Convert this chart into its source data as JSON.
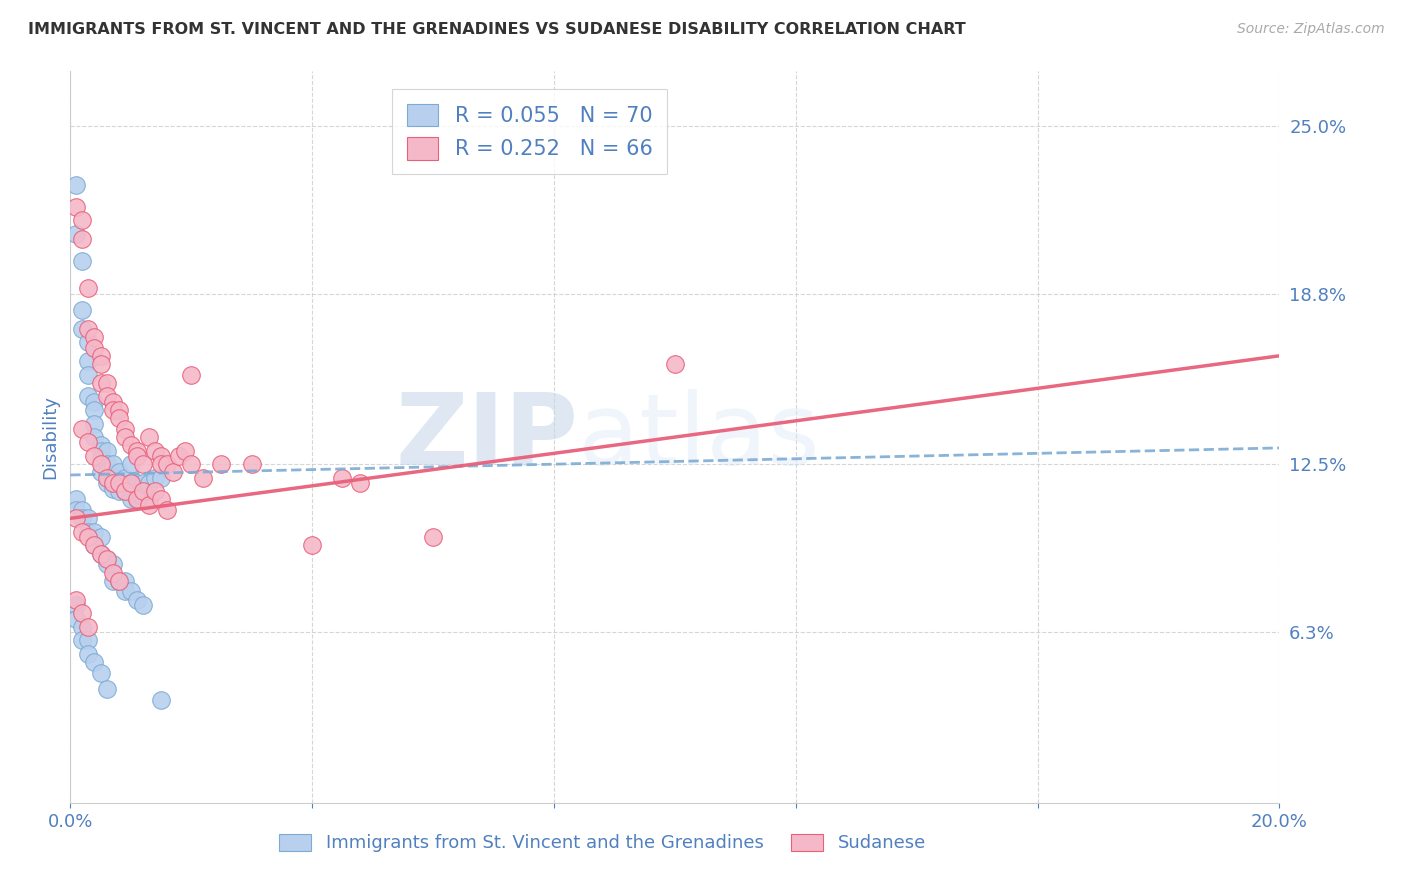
{
  "title": "IMMIGRANTS FROM ST. VINCENT AND THE GRENADINES VS SUDANESE DISABILITY CORRELATION CHART",
  "source": "Source: ZipAtlas.com",
  "ylabel": "Disability",
  "xlim": [
    0.0,
    0.2
  ],
  "ylim": [
    0.0,
    0.27
  ],
  "yticks": [
    0.063,
    0.125,
    0.188,
    0.25
  ],
  "ytick_labels": [
    "6.3%",
    "12.5%",
    "18.8%",
    "25.0%"
  ],
  "xticks": [
    0.0,
    0.04,
    0.08,
    0.12,
    0.16,
    0.2
  ],
  "xtick_labels": [
    "0.0%",
    "",
    "",
    "",
    "",
    "20.0%"
  ],
  "blue_color": "#b8d0ed",
  "pink_color": "#f5b8c8",
  "blue_edge_color": "#7dabd4",
  "pink_edge_color": "#e8607a",
  "blue_line_color": "#7dabd4",
  "pink_line_color": "#e8607a",
  "label_color": "#5080c0",
  "R_blue": 0.055,
  "N_blue": 70,
  "R_pink": 0.252,
  "N_pink": 66,
  "blue_line_x": [
    0.0,
    0.2
  ],
  "blue_line_y": [
    0.121,
    0.131
  ],
  "pink_line_x": [
    0.0,
    0.2
  ],
  "pink_line_y": [
    0.105,
    0.165
  ],
  "watermark_zip": "ZIP",
  "watermark_atlas": "atlas",
  "background_color": "#ffffff",
  "grid_color": "#cccccc",
  "blue_scatter_x": [
    0.001,
    0.001,
    0.002,
    0.002,
    0.002,
    0.003,
    0.003,
    0.003,
    0.003,
    0.004,
    0.004,
    0.004,
    0.004,
    0.005,
    0.005,
    0.005,
    0.005,
    0.006,
    0.006,
    0.006,
    0.006,
    0.007,
    0.007,
    0.007,
    0.008,
    0.008,
    0.008,
    0.009,
    0.009,
    0.01,
    0.01,
    0.01,
    0.011,
    0.011,
    0.012,
    0.012,
    0.013,
    0.013,
    0.014,
    0.015,
    0.001,
    0.001,
    0.002,
    0.002,
    0.003,
    0.003,
    0.004,
    0.004,
    0.005,
    0.005,
    0.006,
    0.006,
    0.007,
    0.007,
    0.008,
    0.009,
    0.009,
    0.01,
    0.011,
    0.012,
    0.001,
    0.001,
    0.002,
    0.002,
    0.003,
    0.003,
    0.004,
    0.005,
    0.006,
    0.015
  ],
  "blue_scatter_y": [
    0.228,
    0.21,
    0.2,
    0.182,
    0.175,
    0.17,
    0.163,
    0.158,
    0.15,
    0.148,
    0.145,
    0.14,
    0.135,
    0.132,
    0.13,
    0.127,
    0.122,
    0.13,
    0.125,
    0.122,
    0.118,
    0.125,
    0.12,
    0.116,
    0.122,
    0.118,
    0.115,
    0.12,
    0.115,
    0.125,
    0.118,
    0.112,
    0.118,
    0.112,
    0.118,
    0.113,
    0.118,
    0.112,
    0.12,
    0.12,
    0.112,
    0.108,
    0.108,
    0.105,
    0.105,
    0.1,
    0.1,
    0.095,
    0.098,
    0.092,
    0.09,
    0.088,
    0.088,
    0.082,
    0.082,
    0.082,
    0.078,
    0.078,
    0.075,
    0.073,
    0.073,
    0.068,
    0.065,
    0.06,
    0.06,
    0.055,
    0.052,
    0.048,
    0.042,
    0.038
  ],
  "pink_scatter_x": [
    0.001,
    0.002,
    0.002,
    0.003,
    0.003,
    0.004,
    0.004,
    0.005,
    0.005,
    0.005,
    0.006,
    0.006,
    0.007,
    0.007,
    0.008,
    0.008,
    0.009,
    0.009,
    0.01,
    0.011,
    0.011,
    0.012,
    0.013,
    0.014,
    0.015,
    0.015,
    0.016,
    0.017,
    0.018,
    0.019,
    0.02,
    0.02,
    0.022,
    0.025,
    0.002,
    0.003,
    0.004,
    0.005,
    0.006,
    0.007,
    0.008,
    0.009,
    0.01,
    0.011,
    0.012,
    0.013,
    0.014,
    0.015,
    0.016,
    0.03,
    0.001,
    0.002,
    0.003,
    0.004,
    0.005,
    0.006,
    0.007,
    0.008,
    0.045,
    0.048,
    0.001,
    0.002,
    0.003,
    0.04,
    0.06,
    0.1
  ],
  "pink_scatter_y": [
    0.22,
    0.215,
    0.208,
    0.19,
    0.175,
    0.172,
    0.168,
    0.165,
    0.162,
    0.155,
    0.155,
    0.15,
    0.148,
    0.145,
    0.145,
    0.142,
    0.138,
    0.135,
    0.132,
    0.13,
    0.128,
    0.125,
    0.135,
    0.13,
    0.128,
    0.125,
    0.125,
    0.122,
    0.128,
    0.13,
    0.125,
    0.158,
    0.12,
    0.125,
    0.138,
    0.133,
    0.128,
    0.125,
    0.12,
    0.118,
    0.118,
    0.115,
    0.118,
    0.112,
    0.115,
    0.11,
    0.115,
    0.112,
    0.108,
    0.125,
    0.105,
    0.1,
    0.098,
    0.095,
    0.092,
    0.09,
    0.085,
    0.082,
    0.12,
    0.118,
    0.075,
    0.07,
    0.065,
    0.095,
    0.098,
    0.162
  ]
}
